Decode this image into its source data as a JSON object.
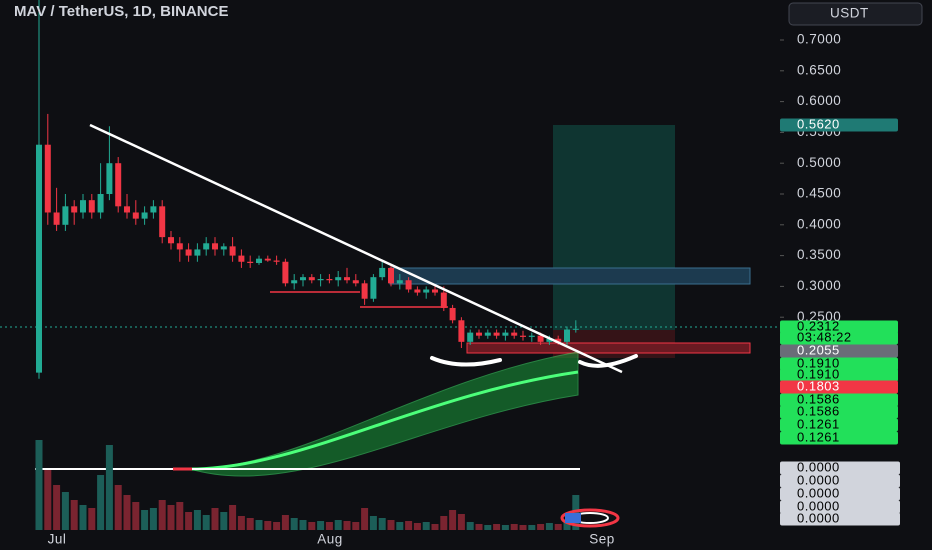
{
  "header": {
    "title": "MAV / TetherUS, 1D, BINANCE"
  },
  "price_axis": {
    "currency": "USDT",
    "ticks": [
      {
        "value": 0.7,
        "label": "0.7000"
      },
      {
        "value": 0.65,
        "label": "0.6500"
      },
      {
        "value": 0.6,
        "label": "0.6000"
      },
      {
        "value": 0.55,
        "label": "0.5500"
      },
      {
        "value": 0.5,
        "label": "0.5000"
      },
      {
        "value": 0.45,
        "label": "0.4500"
      },
      {
        "value": 0.4,
        "label": "0.4000"
      },
      {
        "value": 0.35,
        "label": "0.3500"
      },
      {
        "value": 0.3,
        "label": "0.3000"
      },
      {
        "value": 0.25,
        "label": "0.2500"
      }
    ]
  },
  "time_axis": {
    "labels": [
      "Jul",
      "Aug",
      "Sep"
    ]
  },
  "colors": {
    "up": "#22ab94",
    "down": "#f23645",
    "up_volume": "#1c5e58",
    "down_volume": "#7a2430"
  },
  "candles": [
    [
      0.16,
      0.8,
      0.15,
      0.53
    ],
    [
      0.53,
      0.58,
      0.4,
      0.42
    ],
    [
      0.42,
      0.46,
      0.39,
      0.4
    ],
    [
      0.4,
      0.45,
      0.39,
      0.43
    ],
    [
      0.43,
      0.44,
      0.4,
      0.42
    ],
    [
      0.42,
      0.45,
      0.41,
      0.44
    ],
    [
      0.44,
      0.45,
      0.41,
      0.42
    ],
    [
      0.42,
      0.5,
      0.41,
      0.45
    ],
    [
      0.45,
      0.56,
      0.44,
      0.5
    ],
    [
      0.5,
      0.51,
      0.42,
      0.43
    ],
    [
      0.43,
      0.45,
      0.41,
      0.42
    ],
    [
      0.42,
      0.44,
      0.4,
      0.41
    ],
    [
      0.41,
      0.43,
      0.4,
      0.42
    ],
    [
      0.42,
      0.44,
      0.41,
      0.43
    ],
    [
      0.43,
      0.44,
      0.37,
      0.38
    ],
    [
      0.38,
      0.39,
      0.36,
      0.37
    ],
    [
      0.37,
      0.38,
      0.34,
      0.36
    ],
    [
      0.36,
      0.37,
      0.34,
      0.35
    ],
    [
      0.35,
      0.37,
      0.34,
      0.36
    ],
    [
      0.36,
      0.38,
      0.35,
      0.37
    ],
    [
      0.37,
      0.38,
      0.35,
      0.36
    ],
    [
      0.36,
      0.37,
      0.35,
      0.365
    ],
    [
      0.365,
      0.38,
      0.34,
      0.35
    ],
    [
      0.35,
      0.36,
      0.33,
      0.34
    ],
    [
      0.34,
      0.35,
      0.33,
      0.338
    ],
    [
      0.338,
      0.35,
      0.335,
      0.345
    ],
    [
      0.345,
      0.35,
      0.34,
      0.342
    ],
    [
      0.342,
      0.35,
      0.335,
      0.34
    ],
    [
      0.34,
      0.345,
      0.3,
      0.305
    ],
    [
      0.305,
      0.32,
      0.295,
      0.31
    ],
    [
      0.31,
      0.32,
      0.3,
      0.315
    ],
    [
      0.315,
      0.32,
      0.305,
      0.31
    ],
    [
      0.31,
      0.32,
      0.3,
      0.312
    ],
    [
      0.312,
      0.32,
      0.305,
      0.31
    ],
    [
      0.31,
      0.325,
      0.3,
      0.315
    ],
    [
      0.315,
      0.33,
      0.305,
      0.31
    ],
    [
      0.31,
      0.32,
      0.3,
      0.305
    ],
    [
      0.305,
      0.31,
      0.27,
      0.28
    ],
    [
      0.28,
      0.32,
      0.275,
      0.315
    ],
    [
      0.315,
      0.34,
      0.31,
      0.33
    ],
    [
      0.33,
      0.335,
      0.3,
      0.305
    ],
    [
      0.305,
      0.32,
      0.295,
      0.31
    ],
    [
      0.31,
      0.315,
      0.29,
      0.295
    ],
    [
      0.295,
      0.3,
      0.285,
      0.29
    ],
    [
      0.29,
      0.3,
      0.28,
      0.295
    ],
    [
      0.295,
      0.3,
      0.285,
      0.29
    ],
    [
      0.29,
      0.3,
      0.26,
      0.265
    ],
    [
      0.265,
      0.27,
      0.24,
      0.245
    ],
    [
      0.245,
      0.25,
      0.2,
      0.21
    ],
    [
      0.21,
      0.23,
      0.205,
      0.225
    ],
    [
      0.225,
      0.23,
      0.215,
      0.22
    ],
    [
      0.22,
      0.23,
      0.215,
      0.225
    ],
    [
      0.225,
      0.23,
      0.215,
      0.22
    ],
    [
      0.22,
      0.23,
      0.212,
      0.225
    ],
    [
      0.225,
      0.23,
      0.215,
      0.22
    ],
    [
      0.22,
      0.228,
      0.212,
      0.218
    ],
    [
      0.218,
      0.225,
      0.21,
      0.22
    ],
    [
      0.22,
      0.225,
      0.205,
      0.21
    ],
    [
      0.21,
      0.22,
      0.205,
      0.215
    ],
    [
      0.215,
      0.22,
      0.205,
      0.21
    ],
    [
      0.21,
      0.235,
      0.205,
      0.23
    ],
    [
      0.23,
      0.245,
      0.225,
      0.2312
    ]
  ],
  "volumes": [
    90,
    60,
    45,
    38,
    30,
    25,
    22,
    55,
    85,
    45,
    35,
    28,
    20,
    22,
    30,
    25,
    28,
    18,
    20,
    15,
    22,
    18,
    25,
    14,
    12,
    10,
    9,
    8,
    15,
    12,
    10,
    8,
    9,
    8,
    10,
    9,
    8,
    22,
    14,
    12,
    10,
    8,
    9,
    7,
    8,
    6,
    14,
    20,
    16,
    8,
    6,
    5,
    6,
    5,
    6,
    5,
    5,
    6,
    7,
    6,
    10,
    35
  ],
  "price_tags": [
    {
      "label": "0.5620",
      "background": "#1f7a74",
      "color": "#ffffff"
    },
    {
      "label": "0.2312",
      "background": "#22e05a",
      "color": "#000000"
    },
    {
      "label": "03:48:22",
      "background": "#22e05a",
      "color": "#000000"
    },
    {
      "label": "0.2055",
      "background": "#6a6d78",
      "color": "#ffffff"
    },
    {
      "label": "0.1910",
      "background": "#22e05a",
      "color": "#000000"
    },
    {
      "label": "0.1910",
      "background": "#22e05a",
      "color": "#000000"
    },
    {
      "label": "0.1803",
      "background": "#f23645",
      "color": "#ffffff"
    },
    {
      "label": "0.1586",
      "background": "#22e05a",
      "color": "#000000"
    },
    {
      "label": "0.1586",
      "background": "#22e05a",
      "color": "#000000"
    },
    {
      "label": "0.1261",
      "background": "#22e05a",
      "color": "#000000"
    },
    {
      "label": "0.1261",
      "background": "#22e05a",
      "color": "#000000"
    },
    {
      "label": "0.0000",
      "background": "#d1d4dc",
      "color": "#000000"
    },
    {
      "label": "0.0000",
      "background": "#d1d4dc",
      "color": "#000000"
    },
    {
      "label": "0.0000",
      "background": "#d1d4dc",
      "color": "#000000"
    },
    {
      "label": "0.0000",
      "background": "#d1d4dc",
      "color": "#000000"
    },
    {
      "label": "0.0000",
      "background": "#d1d4dc",
      "color": "#000000"
    }
  ]
}
